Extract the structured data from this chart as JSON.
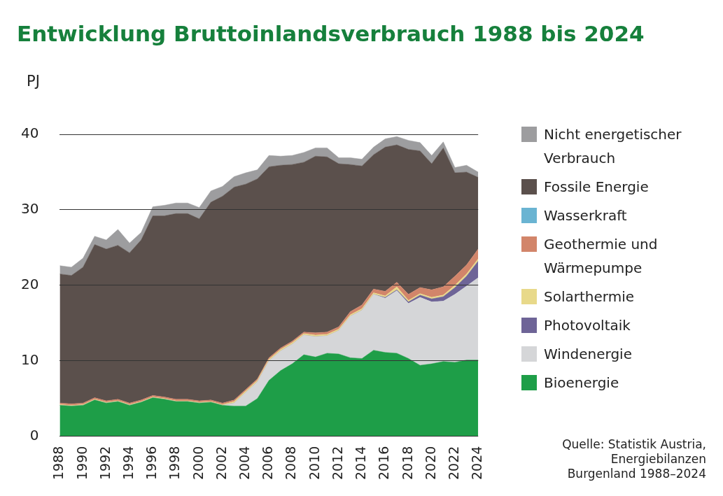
{
  "chart_data": {
    "type": "area",
    "title": "Entwicklung Bruttoinlandsverbrauch 1988 bis 2024",
    "ylabel": "PJ",
    "categories": [
      "1988",
      null,
      "1990",
      null,
      "1992",
      null,
      "1994",
      null,
      "1996",
      null,
      "1998",
      null,
      "2000",
      null,
      "2002",
      null,
      "2004",
      null,
      "2006",
      null,
      "2008",
      null,
      "2010",
      null,
      "2012",
      null,
      "2014",
      null,
      "2016",
      null,
      "2018",
      null,
      "2020",
      null,
      "2022",
      null,
      "2024"
    ],
    "stacked": true,
    "ylim": [
      0,
      40
    ],
    "yticks": [
      0,
      10,
      20,
      30,
      40
    ],
    "grid": "y",
    "legend": "right",
    "series": [
      {
        "name": "Bioenergie",
        "color": "#1e9e48",
        "values": [
          4.1,
          4.0,
          4.1,
          4.8,
          4.4,
          4.6,
          4.1,
          4.5,
          5.1,
          4.9,
          4.6,
          4.6,
          4.4,
          4.5,
          4.1,
          4.0,
          4.0,
          5.0,
          7.4,
          8.7,
          9.6,
          10.8,
          10.5,
          11.0,
          10.9,
          10.4,
          10.3,
          11.4,
          11.1,
          11.0,
          10.3,
          9.4,
          9.6,
          9.9,
          9.8,
          10.1,
          10.1
        ]
      },
      {
        "name": "Windenergie",
        "color": "#d5d6d8",
        "values": [
          0,
          0,
          0,
          0,
          0,
          0,
          0,
          0,
          0,
          0,
          0,
          0,
          0,
          0,
          0,
          0.4,
          1.8,
          2.2,
          2.6,
          2.6,
          2.6,
          2.6,
          2.7,
          2.3,
          3.1,
          5.5,
          6.4,
          7.4,
          7.2,
          8.3,
          7.3,
          9.0,
          8.2,
          8.0,
          9.0,
          9.8,
          10.9
        ]
      },
      {
        "name": "Photovoltaik",
        "color": "#6e6497",
        "values": [
          0,
          0,
          0,
          0,
          0,
          0,
          0,
          0,
          0,
          0,
          0,
          0,
          0,
          0,
          0,
          0,
          0,
          0,
          0,
          0,
          0,
          0,
          0,
          0,
          0,
          0,
          0,
          0,
          0.1,
          0.1,
          0.2,
          0.3,
          0.4,
          0.6,
          0.9,
          1.3,
          2.2
        ]
      },
      {
        "name": "Solarthermie",
        "color": "#e8d98a",
        "values": [
          0.1,
          0.1,
          0.1,
          0.1,
          0.1,
          0.1,
          0.1,
          0.1,
          0.1,
          0.1,
          0.1,
          0.1,
          0.1,
          0.1,
          0.1,
          0.2,
          0.2,
          0.2,
          0.2,
          0.2,
          0.2,
          0.2,
          0.2,
          0.2,
          0.2,
          0.2,
          0.2,
          0.2,
          0.2,
          0.4,
          0.2,
          0.2,
          0.2,
          0.2,
          0.3,
          0.3,
          0.3
        ]
      },
      {
        "name": "Geothermie und Wärmepumpe",
        "color": "#d2856a",
        "values": [
          0.2,
          0.2,
          0.2,
          0.2,
          0.2,
          0.2,
          0.2,
          0.2,
          0.2,
          0.2,
          0.2,
          0.2,
          0.2,
          0.2,
          0.2,
          0.2,
          0.2,
          0.2,
          0.2,
          0.2,
          0.2,
          0.2,
          0.3,
          0.3,
          0.3,
          0.4,
          0.5,
          0.5,
          0.6,
          0.6,
          0.8,
          0.8,
          1.0,
          1.1,
          1.2,
          1.2,
          1.3
        ]
      },
      {
        "name": "Wasserkraft",
        "color": "#6ab4d2",
        "values": [
          null,
          null,
          null,
          null,
          null,
          null,
          null,
          null,
          null,
          null,
          null,
          null,
          null,
          null,
          null,
          null,
          null,
          null,
          null,
          null,
          null,
          null,
          null,
          null,
          null,
          null,
          null,
          null,
          null,
          null,
          null,
          null,
          null,
          null,
          null,
          null,
          null
        ]
      },
      {
        "name": "Fossile Energie",
        "color": "#5b504c",
        "values": [
          17.1,
          17.0,
          18.0,
          20.3,
          20.1,
          20.4,
          19.9,
          21.2,
          23.8,
          24.0,
          24.6,
          24.6,
          24.1,
          26.2,
          27.4,
          28.2,
          27.2,
          26.5,
          25.3,
          24.2,
          23.4,
          22.5,
          23.4,
          23.2,
          21.6,
          19.5,
          18.4,
          17.8,
          19.1,
          18.2,
          19.2,
          18.1,
          16.7,
          18.4,
          13.7,
          12.3,
          9.5
        ]
      },
      {
        "name": "Nicht energetischer Verbrauch",
        "color": "#9d9d9f",
        "values": [
          1.1,
          1.1,
          1.2,
          1.1,
          1.2,
          2.1,
          1.3,
          1.0,
          1.2,
          1.4,
          1.4,
          1.4,
          1.5,
          1.5,
          1.3,
          1.4,
          1.5,
          1.2,
          1.5,
          1.2,
          1.2,
          1.3,
          1.1,
          1.2,
          0.8,
          0.9,
          0.9,
          1.0,
          1.1,
          1.1,
          1.2,
          1.1,
          1.1,
          0.8,
          0.7,
          0.9,
          0.7
        ]
      }
    ],
    "annotations": [
      "Quelle: Statistik Austria, Energiebilanzen Burgenland 1988–2024"
    ]
  }
}
